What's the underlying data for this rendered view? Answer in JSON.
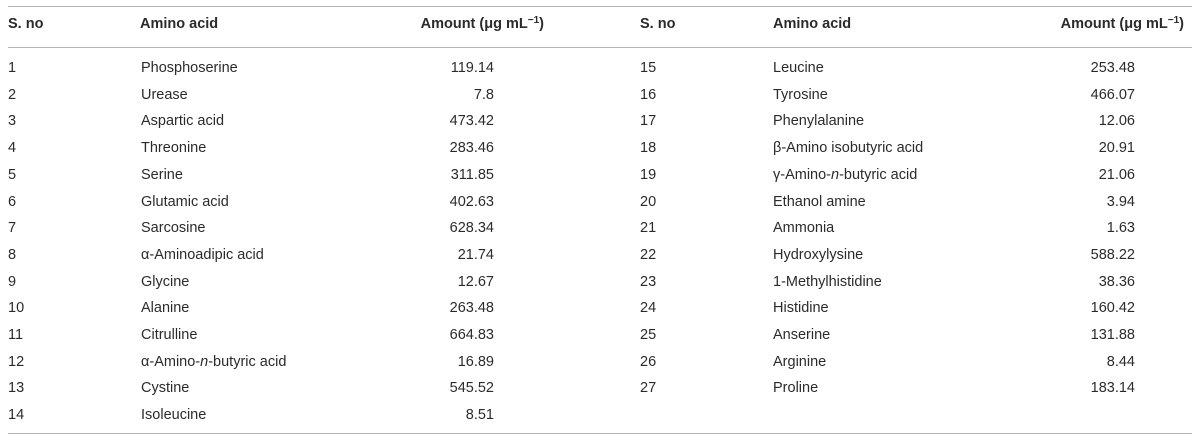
{
  "table": {
    "headers": {
      "sno": "S. no",
      "acid": "Amino acid",
      "amount_pre": "Amount (μg mL",
      "amount_sup": "−1",
      "amount_post": ")"
    },
    "left": [
      {
        "n": "1",
        "name": "Phosphoserine",
        "amount": "119.14"
      },
      {
        "n": "2",
        "name": "Urease",
        "amount": "7.8"
      },
      {
        "n": "3",
        "name": "Aspartic acid",
        "amount": "473.42"
      },
      {
        "n": "4",
        "name": "Threonine",
        "amount": "283.46"
      },
      {
        "n": "5",
        "name": "Serine",
        "amount": "311.85"
      },
      {
        "n": "6",
        "name": "Glutamic acid",
        "amount": "402.63"
      },
      {
        "n": "7",
        "name": "Sarcosine",
        "amount": "628.34"
      },
      {
        "n": "8",
        "name": "α-Aminoadipic acid",
        "amount": "21.74"
      },
      {
        "n": "9",
        "name": "Glycine",
        "amount": "12.67"
      },
      {
        "n": "10",
        "name": "Alanine",
        "amount": "263.48"
      },
      {
        "n": "11",
        "name": "Citrulline",
        "amount": "664.83"
      },
      {
        "n": "12",
        "name_pre": "α-Amino-",
        "name_it": "n",
        "name_post": "-butyric acid",
        "amount": "16.89"
      },
      {
        "n": "13",
        "name": "Cystine",
        "amount": "545.52"
      },
      {
        "n": "14",
        "name": "Isoleucine",
        "amount": "8.51"
      }
    ],
    "right": [
      {
        "n": "15",
        "name": "Leucine",
        "amount": "253.48"
      },
      {
        "n": "16",
        "name": "Tyrosine",
        "amount": "466.07"
      },
      {
        "n": "17",
        "name": "Phenylalanine",
        "amount": "12.06"
      },
      {
        "n": "18",
        "name": "β-Amino isobutyric acid",
        "amount": "20.91"
      },
      {
        "n": "19",
        "name_pre": "γ-Amino-",
        "name_it": "n",
        "name_post": "-butyric acid",
        "amount": "21.06"
      },
      {
        "n": "20",
        "name": "Ethanol amine",
        "amount": "3.94"
      },
      {
        "n": "21",
        "name": "Ammonia",
        "amount": "1.63"
      },
      {
        "n": "22",
        "name": "Hydroxylysine",
        "amount": "588.22"
      },
      {
        "n": "23",
        "name": "1-Methylhistidine",
        "amount": "38.36"
      },
      {
        "n": "24",
        "name": "Histidine",
        "amount": "160.42"
      },
      {
        "n": "25",
        "name": "Anserine",
        "amount": "131.88"
      },
      {
        "n": "26",
        "name": "Arginine",
        "amount": "8.44"
      },
      {
        "n": "27",
        "name": "Proline",
        "amount": "183.14"
      }
    ]
  }
}
